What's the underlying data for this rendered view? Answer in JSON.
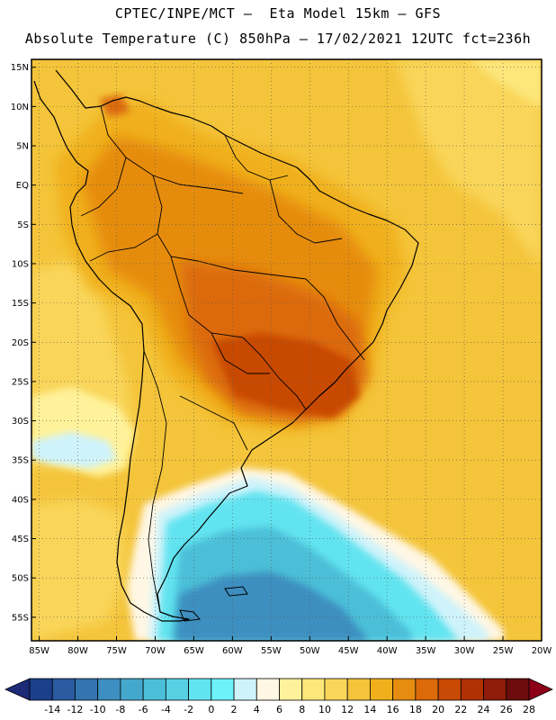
{
  "header": {
    "line1": "CPTEC/INPE/MCT –  Eta Model 15km – GFS",
    "line2": "Absolute Temperature (C) 850hPa – 17/02/2021 12UTC fct=236h"
  },
  "map": {
    "lon_range": [
      -86,
      -20
    ],
    "lat_range": [
      -58,
      16
    ],
    "lat_labels": [
      "15N",
      "10N",
      "5N",
      "EQ",
      "5S",
      "10S",
      "15S",
      "20S",
      "25S",
      "30S",
      "35S",
      "40S",
      "45S",
      "50S",
      "55S"
    ],
    "lon_labels": [
      "85W",
      "80W",
      "75W",
      "70W",
      "65W",
      "60W",
      "55W",
      "50W",
      "45W",
      "40W",
      "35W",
      "30W",
      "25W",
      "20W"
    ],
    "grid": true
  },
  "colorbar": {
    "levels": [
      "-14",
      "-12",
      "-10",
      "-8",
      "-6",
      "-4",
      "-2",
      "0",
      "2",
      "4",
      "6",
      "8",
      "10",
      "12",
      "14",
      "16",
      "18",
      "20",
      "22",
      "24",
      "26",
      "28"
    ],
    "colors": [
      "#1c3f8c",
      "#2a5aa0",
      "#3275b0",
      "#3c8fc0",
      "#44a8cc",
      "#4cbfd8",
      "#58d0e4",
      "#62e4f0",
      "#6cf2f8",
      "#cff3fb",
      "#fff7e4",
      "#fff29a",
      "#fde67a",
      "#f9d65a",
      "#f4c43a",
      "#f0b01c",
      "#e68c10",
      "#dc6a08",
      "#c84a04",
      "#b03204",
      "#8e1c08",
      "#6c0c0c",
      "#8c0018"
    ],
    "under_color": "#1c2a78",
    "over_color": "#8c0018"
  }
}
